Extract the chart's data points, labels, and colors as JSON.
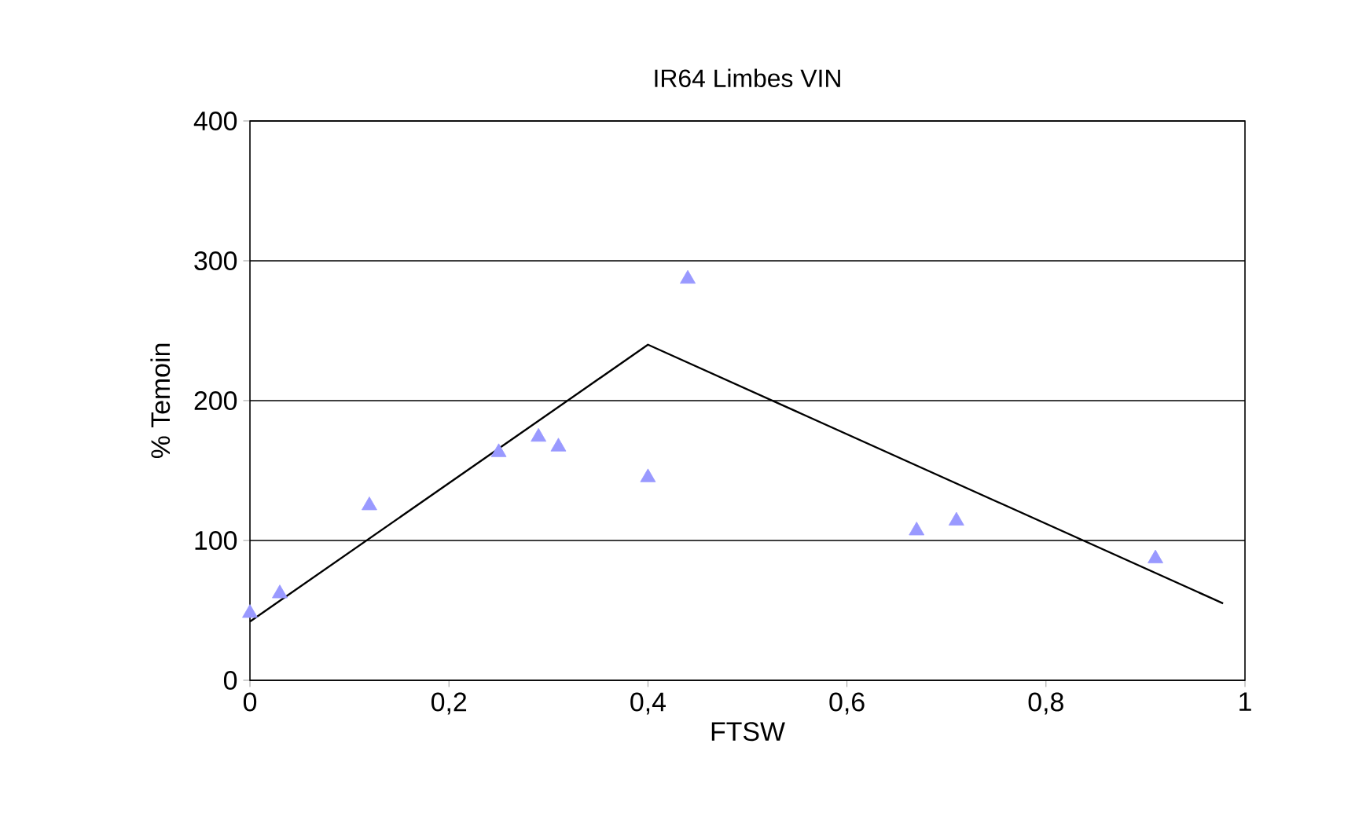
{
  "chart_data": {
    "type": "scatter",
    "title": "IR64  Limbes VIN",
    "xlabel": "FTSW",
    "ylabel": "% Temoin",
    "xlim": [
      0,
      1
    ],
    "ylim": [
      0,
      400
    ],
    "xticks": [
      0,
      {
        "value": 0.2,
        "label": "0,2"
      },
      {
        "value": 0.4,
        "label": "0,4"
      },
      {
        "value": 0.6,
        "label": "0,6"
      },
      {
        "value": 0.8,
        "label": "0,8"
      },
      1
    ],
    "yticks": [
      0,
      100,
      200,
      300,
      400
    ],
    "grid": "y",
    "series": [
      {
        "color": "#9999ff",
        "marker": "triangle",
        "x": [
          0,
          0.03,
          0.12,
          0.25,
          0.29,
          0.31,
          0.4,
          0.44,
          0.67,
          0.71,
          0.91
        ],
        "values": [
          48,
          62,
          125,
          163,
          174,
          167,
          145,
          287,
          107,
          114,
          87
        ]
      },
      {
        "type": "line",
        "color": "#000000",
        "marker": "none",
        "line_style": "solid",
        "x": [
          0,
          0.4,
          0.978
        ],
        "values": [
          42,
          240,
          55
        ]
      }
    ]
  }
}
